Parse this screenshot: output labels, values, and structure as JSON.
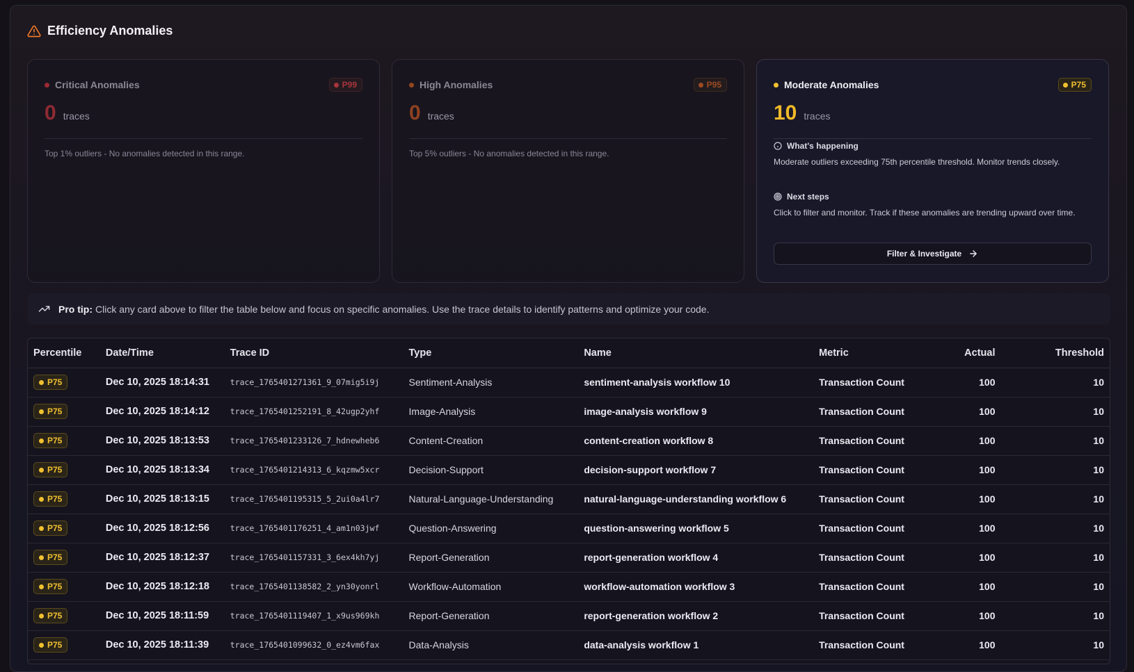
{
  "header": {
    "title": "Efficiency Anomalies",
    "icon": "warning-triangle-icon"
  },
  "cards": [
    {
      "label": "Critical Anomalies",
      "badge": "P99",
      "count": "0",
      "unit": "traces",
      "description": "Top 1% outliers - No anomalies detected in this range.",
      "color": "#9a2a32"
    },
    {
      "label": "High Anomalies",
      "badge": "P95",
      "count": "0",
      "unit": "traces",
      "description": "Top 5% outliers - No anomalies detected in this range.",
      "color": "#93451f"
    },
    {
      "label": "Moderate Anomalies",
      "badge": "P75",
      "count": "10",
      "unit": "traces",
      "color": "#f0c030",
      "whats_happening_title": "What's happening",
      "whats_happening_text": "Moderate outliers exceeding 75th percentile threshold. Monitor trends closely.",
      "next_steps_title": "Next steps",
      "next_steps_text": "Click to filter and monitor. Track if these anomalies are trending upward over time.",
      "button_label": "Filter & Investigate"
    }
  ],
  "tip": {
    "label": "Pro tip:",
    "text": "Click any card above to filter the table below and focus on specific anomalies. Use the trace details to identify patterns and optimize your code."
  },
  "table": {
    "columns": [
      "Percentile",
      "Date/Time",
      "Trace ID",
      "Type",
      "Name",
      "Metric",
      "Actual",
      "Threshold"
    ],
    "rows": [
      {
        "percentile": "P75",
        "datetime": "Dec 10, 2025 18:14:31",
        "trace_id": "trace_1765401271361_9_07mig5i9j",
        "type": "Sentiment-Analysis",
        "name": "sentiment-analysis workflow 10",
        "metric": "Transaction Count",
        "actual": "100",
        "threshold": "10"
      },
      {
        "percentile": "P75",
        "datetime": "Dec 10, 2025 18:14:12",
        "trace_id": "trace_1765401252191_8_42ugp2yhf",
        "type": "Image-Analysis",
        "name": "image-analysis workflow 9",
        "metric": "Transaction Count",
        "actual": "100",
        "threshold": "10"
      },
      {
        "percentile": "P75",
        "datetime": "Dec 10, 2025 18:13:53",
        "trace_id": "trace_1765401233126_7_hdnewheb6",
        "type": "Content-Creation",
        "name": "content-creation workflow 8",
        "metric": "Transaction Count",
        "actual": "100",
        "threshold": "10"
      },
      {
        "percentile": "P75",
        "datetime": "Dec 10, 2025 18:13:34",
        "trace_id": "trace_1765401214313_6_kqzmw5xcr",
        "type": "Decision-Support",
        "name": "decision-support workflow 7",
        "metric": "Transaction Count",
        "actual": "100",
        "threshold": "10"
      },
      {
        "percentile": "P75",
        "datetime": "Dec 10, 2025 18:13:15",
        "trace_id": "trace_1765401195315_5_2ui0a4lr7",
        "type": "Natural-Language-Understanding",
        "name": "natural-language-understanding workflow 6",
        "metric": "Transaction Count",
        "actual": "100",
        "threshold": "10"
      },
      {
        "percentile": "P75",
        "datetime": "Dec 10, 2025 18:12:56",
        "trace_id": "trace_1765401176251_4_am1n03jwf",
        "type": "Question-Answering",
        "name": "question-answering workflow 5",
        "metric": "Transaction Count",
        "actual": "100",
        "threshold": "10"
      },
      {
        "percentile": "P75",
        "datetime": "Dec 10, 2025 18:12:37",
        "trace_id": "trace_1765401157331_3_6ex4kh7yj",
        "type": "Report-Generation",
        "name": "report-generation workflow 4",
        "metric": "Transaction Count",
        "actual": "100",
        "threshold": "10"
      },
      {
        "percentile": "P75",
        "datetime": "Dec 10, 2025 18:12:18",
        "trace_id": "trace_1765401138582_2_yn30yonrl",
        "type": "Workflow-Automation",
        "name": "workflow-automation workflow 3",
        "metric": "Transaction Count",
        "actual": "100",
        "threshold": "10"
      },
      {
        "percentile": "P75",
        "datetime": "Dec 10, 2025 18:11:59",
        "trace_id": "trace_1765401119407_1_x9us969kh",
        "type": "Report-Generation",
        "name": "report-generation workflow 2",
        "metric": "Transaction Count",
        "actual": "100",
        "threshold": "10"
      },
      {
        "percentile": "P75",
        "datetime": "Dec 10, 2025 18:11:39",
        "trace_id": "trace_1765401099632_0_ez4vm6fax",
        "type": "Data-Analysis",
        "name": "data-analysis workflow 1",
        "metric": "Transaction Count",
        "actual": "100",
        "threshold": "10"
      }
    ]
  }
}
